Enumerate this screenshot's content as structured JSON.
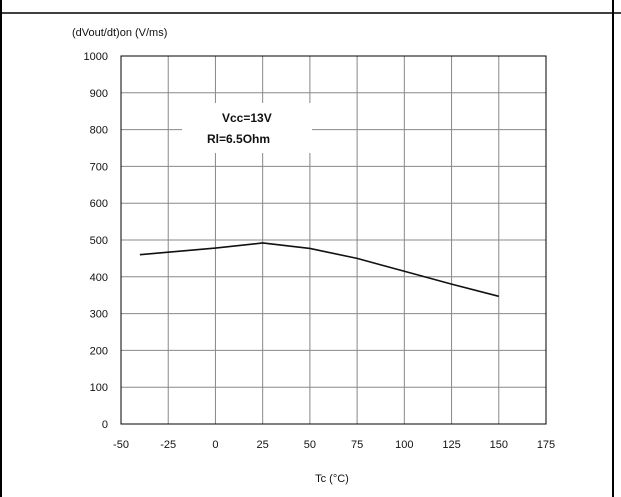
{
  "chart_data": {
    "type": "line",
    "title": "",
    "ylabel": "(dVout/dt)on (V/ms)",
    "xlabel": "Tc (°C)",
    "xlim": [
      -50,
      175
    ],
    "ylim": [
      0,
      1000
    ],
    "x_ticks": [
      -50,
      -25,
      0,
      25,
      50,
      75,
      100,
      125,
      150,
      175
    ],
    "y_ticks": [
      0,
      100,
      200,
      300,
      400,
      500,
      600,
      700,
      800,
      900,
      1000
    ],
    "grid": true,
    "annotations": [
      "Vcc=13V",
      "Rl=6.5Ohm"
    ],
    "series": [
      {
        "x": [
          -40,
          -25,
          0,
          25,
          50,
          75,
          100,
          125,
          150
        ],
        "y": [
          460,
          467,
          478,
          492,
          477,
          450,
          415,
          380,
          347
        ]
      }
    ]
  },
  "colors": {
    "line": "#111111",
    "grid": "#888888",
    "frame": "#000000"
  }
}
